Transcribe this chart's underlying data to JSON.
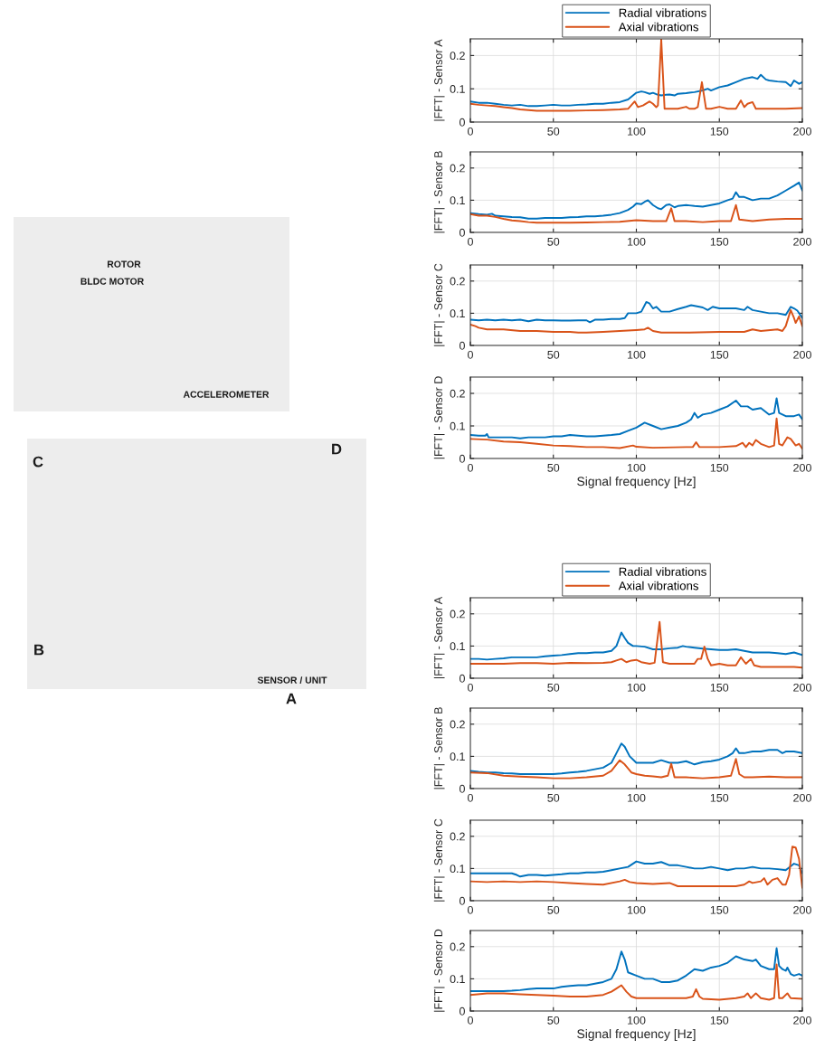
{
  "chart_data": [
    {
      "type": "other",
      "annotations": [
        "ROTOR",
        "BLDC MOTOR",
        "ACCELEROMETER",
        "C",
        "D",
        "B",
        "SENSOR / UNIT",
        "A"
      ]
    },
    {
      "type": "line",
      "ylabel": "|FFT| - Sensor A",
      "xlim": [
        0,
        200
      ],
      "ylim": [
        0,
        0.25
      ],
      "xticks": [
        0,
        50,
        100,
        150,
        200
      ],
      "yticks": [
        0,
        0.1,
        0.2
      ],
      "grid": true,
      "legend": "top",
      "line_style": "solid",
      "series": [
        {
          "name": "Radial vibrations",
          "color": "#0072bd",
          "x": [
            0,
            5,
            10,
            15,
            20,
            25,
            30,
            35,
            40,
            45,
            50,
            55,
            60,
            65,
            70,
            75,
            80,
            85,
            90,
            95,
            98,
            100,
            103,
            105,
            108,
            110,
            113,
            115,
            118,
            120,
            123,
            125,
            130,
            135,
            140,
            143,
            145,
            150,
            155,
            160,
            165,
            170,
            173,
            175,
            178,
            180,
            185,
            190,
            193,
            195,
            198,
            200
          ],
          "values": [
            0.062,
            0.058,
            0.058,
            0.055,
            0.052,
            0.05,
            0.052,
            0.048,
            0.048,
            0.05,
            0.052,
            0.05,
            0.05,
            0.052,
            0.053,
            0.055,
            0.055,
            0.058,
            0.06,
            0.068,
            0.08,
            0.088,
            0.092,
            0.09,
            0.085,
            0.088,
            0.082,
            0.08,
            0.082,
            0.083,
            0.08,
            0.085,
            0.087,
            0.09,
            0.095,
            0.1,
            0.095,
            0.105,
            0.11,
            0.12,
            0.13,
            0.135,
            0.13,
            0.142,
            0.128,
            0.125,
            0.122,
            0.12,
            0.108,
            0.125,
            0.115,
            0.12
          ]
        },
        {
          "name": "Axial vibrations",
          "color": "#d95319",
          "x": [
            0,
            5,
            10,
            15,
            20,
            25,
            30,
            35,
            40,
            50,
            60,
            70,
            80,
            90,
            95,
            99,
            101,
            104,
            108,
            110,
            112,
            113,
            115,
            117,
            120,
            125,
            130,
            132,
            135,
            137,
            139.5,
            142,
            145,
            150,
            155,
            160,
            163,
            165,
            167,
            170,
            172,
            180,
            190,
            200
          ],
          "values": [
            0.055,
            0.052,
            0.05,
            0.048,
            0.045,
            0.042,
            0.038,
            0.036,
            0.034,
            0.034,
            0.034,
            0.035,
            0.036,
            0.038,
            0.04,
            0.062,
            0.045,
            0.05,
            0.062,
            0.055,
            0.045,
            0.05,
            0.248,
            0.04,
            0.04,
            0.04,
            0.046,
            0.04,
            0.04,
            0.045,
            0.12,
            0.04,
            0.04,
            0.046,
            0.04,
            0.04,
            0.065,
            0.045,
            0.055,
            0.06,
            0.04,
            0.04,
            0.04,
            0.042
          ]
        }
      ]
    },
    {
      "type": "line",
      "ylabel": "|FFT| - Sensor B",
      "xlim": [
        0,
        200
      ],
      "ylim": [
        0,
        0.25
      ],
      "xticks": [
        0,
        50,
        100,
        150,
        200
      ],
      "yticks": [
        0,
        0.1,
        0.2
      ],
      "grid": true,
      "line_style": "solid",
      "series": [
        {
          "color": "#0072bd",
          "x": [
            0,
            5,
            10,
            13,
            15,
            20,
            25,
            30,
            35,
            40,
            45,
            50,
            55,
            60,
            65,
            70,
            75,
            80,
            85,
            90,
            95,
            98,
            100,
            103,
            105,
            107,
            110,
            113,
            115,
            118,
            120,
            123,
            125,
            130,
            135,
            140,
            145,
            150,
            155,
            158,
            160,
            162,
            165,
            170,
            175,
            180,
            185,
            190,
            195,
            198,
            200
          ],
          "values": [
            0.06,
            0.057,
            0.055,
            0.058,
            0.052,
            0.05,
            0.048,
            0.047,
            0.043,
            0.043,
            0.045,
            0.045,
            0.045,
            0.047,
            0.048,
            0.05,
            0.05,
            0.052,
            0.055,
            0.06,
            0.07,
            0.08,
            0.09,
            0.088,
            0.095,
            0.1,
            0.085,
            0.075,
            0.072,
            0.085,
            0.087,
            0.078,
            0.082,
            0.085,
            0.082,
            0.08,
            0.085,
            0.09,
            0.1,
            0.105,
            0.125,
            0.11,
            0.11,
            0.1,
            0.105,
            0.105,
            0.115,
            0.13,
            0.145,
            0.155,
            0.13
          ]
        },
        {
          "color": "#d95319",
          "x": [
            0,
            5,
            10,
            15,
            20,
            25,
            30,
            35,
            40,
            50,
            60,
            70,
            80,
            90,
            100,
            110,
            118,
            121,
            123,
            130,
            140,
            150,
            157,
            160,
            162,
            170,
            180,
            190,
            200
          ],
          "values": [
            0.057,
            0.052,
            0.052,
            0.048,
            0.042,
            0.037,
            0.035,
            0.032,
            0.03,
            0.03,
            0.03,
            0.031,
            0.032,
            0.033,
            0.038,
            0.035,
            0.035,
            0.075,
            0.035,
            0.035,
            0.032,
            0.035,
            0.035,
            0.085,
            0.04,
            0.035,
            0.04,
            0.042,
            0.042
          ]
        }
      ]
    },
    {
      "type": "line",
      "ylabel": "|FFT| - Sensor C",
      "xlim": [
        0,
        200
      ],
      "ylim": [
        0,
        0.25
      ],
      "xticks": [
        0,
        50,
        100,
        150,
        200
      ],
      "yticks": [
        0,
        0.1,
        0.2
      ],
      "grid": true,
      "line_style": "solid",
      "series": [
        {
          "color": "#0072bd",
          "x": [
            0,
            5,
            10,
            15,
            20,
            25,
            30,
            35,
            40,
            45,
            50,
            55,
            60,
            65,
            70,
            72,
            75,
            80,
            85,
            90,
            93,
            95,
            100,
            103,
            106,
            108,
            110,
            112,
            115,
            120,
            125,
            130,
            133,
            138,
            140,
            143,
            146,
            150,
            155,
            160,
            165,
            167,
            170,
            175,
            180,
            185,
            190,
            193,
            195,
            197,
            200
          ],
          "values": [
            0.08,
            0.078,
            0.08,
            0.078,
            0.08,
            0.078,
            0.08,
            0.075,
            0.08,
            0.078,
            0.078,
            0.077,
            0.077,
            0.078,
            0.078,
            0.072,
            0.08,
            0.08,
            0.082,
            0.082,
            0.085,
            0.1,
            0.1,
            0.105,
            0.135,
            0.13,
            0.115,
            0.12,
            0.105,
            0.105,
            0.113,
            0.12,
            0.125,
            0.12,
            0.118,
            0.11,
            0.12,
            0.115,
            0.115,
            0.115,
            0.11,
            0.12,
            0.11,
            0.105,
            0.1,
            0.1,
            0.095,
            0.12,
            0.115,
            0.108,
            0.085
          ]
        },
        {
          "color": "#d95319",
          "x": [
            0,
            3,
            5,
            10,
            20,
            30,
            40,
            50,
            60,
            65,
            70,
            80,
            90,
            100,
            105,
            107,
            110,
            115,
            130,
            150,
            165,
            170,
            175,
            185,
            188,
            190,
            193,
            195,
            196,
            198,
            200
          ],
          "values": [
            0.065,
            0.06,
            0.055,
            0.05,
            0.05,
            0.045,
            0.045,
            0.042,
            0.042,
            0.04,
            0.04,
            0.042,
            0.045,
            0.048,
            0.05,
            0.055,
            0.045,
            0.04,
            0.04,
            0.042,
            0.042,
            0.05,
            0.045,
            0.05,
            0.045,
            0.06,
            0.11,
            0.085,
            0.07,
            0.09,
            0.06
          ]
        }
      ]
    },
    {
      "type": "line",
      "ylabel": "|FFT| - Sensor D",
      "xlabel": "Signal frequency [Hz]",
      "xlim": [
        0,
        200
      ],
      "ylim": [
        0,
        0.25
      ],
      "xticks": [
        0,
        50,
        100,
        150,
        200
      ],
      "yticks": [
        0,
        0.1,
        0.2
      ],
      "grid": true,
      "line_style": "solid",
      "series": [
        {
          "color": "#0072bd",
          "x": [
            0,
            5,
            9,
            10,
            11,
            15,
            20,
            25,
            30,
            35,
            40,
            45,
            50,
            55,
            60,
            65,
            70,
            75,
            80,
            85,
            90,
            95,
            100,
            105,
            110,
            115,
            120,
            125,
            130,
            133,
            135,
            137,
            140,
            145,
            150,
            155,
            160,
            163,
            167,
            170,
            175,
            180,
            183,
            184.5,
            186,
            190,
            195,
            198,
            200
          ],
          "values": [
            0.072,
            0.07,
            0.07,
            0.075,
            0.065,
            0.065,
            0.065,
            0.065,
            0.062,
            0.065,
            0.065,
            0.065,
            0.068,
            0.068,
            0.072,
            0.07,
            0.068,
            0.068,
            0.07,
            0.072,
            0.075,
            0.085,
            0.095,
            0.11,
            0.1,
            0.09,
            0.095,
            0.1,
            0.11,
            0.12,
            0.14,
            0.125,
            0.135,
            0.14,
            0.15,
            0.16,
            0.178,
            0.16,
            0.16,
            0.15,
            0.155,
            0.135,
            0.14,
            0.185,
            0.14,
            0.13,
            0.13,
            0.135,
            0.12
          ]
        },
        {
          "color": "#d95319",
          "x": [
            0,
            10,
            20,
            30,
            40,
            50,
            60,
            70,
            80,
            90,
            98,
            100,
            110,
            130,
            134,
            136,
            138,
            150,
            160,
            164,
            166,
            168,
            170,
            172,
            175,
            180,
            183,
            184.5,
            186,
            188,
            191,
            193,
            196,
            198,
            200
          ],
          "values": [
            0.06,
            0.058,
            0.052,
            0.05,
            0.045,
            0.04,
            0.038,
            0.035,
            0.035,
            0.032,
            0.04,
            0.036,
            0.033,
            0.035,
            0.035,
            0.05,
            0.035,
            0.035,
            0.038,
            0.048,
            0.035,
            0.048,
            0.04,
            0.057,
            0.045,
            0.035,
            0.04,
            0.123,
            0.045,
            0.04,
            0.065,
            0.06,
            0.04,
            0.045,
            0.03
          ]
        }
      ]
    },
    {
      "type": "line",
      "ylabel": "|FFT| - Sensor A",
      "xlim": [
        0,
        200
      ],
      "ylim": [
        0,
        0.25
      ],
      "xticks": [
        0,
        50,
        100,
        150,
        200
      ],
      "yticks": [
        0,
        0.1,
        0.2
      ],
      "grid": true,
      "legend": "top",
      "line_style": "solid",
      "series": [
        {
          "name": "Radial vibrations",
          "color": "#0072bd",
          "x": [
            0,
            5,
            10,
            15,
            20,
            25,
            30,
            35,
            40,
            45,
            50,
            55,
            60,
            65,
            70,
            75,
            80,
            85,
            88,
            91,
            93,
            95,
            98,
            100,
            105,
            110,
            115,
            120,
            125,
            128,
            130,
            135,
            140,
            145,
            150,
            155,
            160,
            165,
            170,
            175,
            180,
            185,
            190,
            195,
            200
          ],
          "values": [
            0.06,
            0.06,
            0.058,
            0.06,
            0.062,
            0.065,
            0.065,
            0.065,
            0.065,
            0.068,
            0.07,
            0.072,
            0.075,
            0.078,
            0.078,
            0.08,
            0.08,
            0.085,
            0.1,
            0.142,
            0.125,
            0.11,
            0.1,
            0.1,
            0.098,
            0.09,
            0.09,
            0.093,
            0.095,
            0.1,
            0.098,
            0.095,
            0.092,
            0.09,
            0.088,
            0.088,
            0.09,
            0.085,
            0.08,
            0.08,
            0.08,
            0.078,
            0.075,
            0.08,
            0.072
          ]
        },
        {
          "name": "Axial vibrations",
          "color": "#d95319",
          "x": [
            0,
            10,
            20,
            30,
            40,
            50,
            60,
            70,
            80,
            85,
            88,
            91,
            94,
            97,
            100,
            103,
            108,
            111,
            114,
            116,
            120,
            130,
            135,
            137,
            139,
            141,
            143,
            145,
            150,
            155,
            160,
            163,
            166,
            169,
            171,
            175,
            185,
            195,
            200
          ],
          "values": [
            0.045,
            0.045,
            0.045,
            0.047,
            0.047,
            0.045,
            0.048,
            0.047,
            0.048,
            0.05,
            0.055,
            0.06,
            0.05,
            0.055,
            0.057,
            0.05,
            0.045,
            0.048,
            0.175,
            0.05,
            0.045,
            0.045,
            0.045,
            0.06,
            0.06,
            0.098,
            0.06,
            0.04,
            0.045,
            0.04,
            0.04,
            0.065,
            0.045,
            0.06,
            0.04,
            0.035,
            0.035,
            0.035,
            0.033
          ]
        }
      ]
    },
    {
      "type": "line",
      "ylabel": "|FFT| - Sensor B",
      "xlim": [
        0,
        200
      ],
      "ylim": [
        0,
        0.25
      ],
      "xticks": [
        0,
        50,
        100,
        150,
        200
      ],
      "yticks": [
        0,
        0.1,
        0.2
      ],
      "grid": true,
      "line_style": "solid",
      "series": [
        {
          "color": "#0072bd",
          "x": [
            0,
            5,
            10,
            15,
            20,
            25,
            30,
            35,
            40,
            45,
            50,
            55,
            60,
            65,
            70,
            75,
            80,
            85,
            88,
            91,
            93,
            96,
            100,
            105,
            110,
            115,
            120,
            125,
            130,
            135,
            140,
            145,
            150,
            155,
            158,
            160,
            162,
            165,
            170,
            175,
            180,
            185,
            188,
            190,
            195,
            200
          ],
          "values": [
            0.055,
            0.052,
            0.05,
            0.05,
            0.048,
            0.047,
            0.045,
            0.045,
            0.045,
            0.045,
            0.045,
            0.047,
            0.05,
            0.052,
            0.055,
            0.06,
            0.065,
            0.08,
            0.11,
            0.14,
            0.13,
            0.1,
            0.08,
            0.08,
            0.08,
            0.088,
            0.08,
            0.08,
            0.085,
            0.075,
            0.082,
            0.085,
            0.09,
            0.1,
            0.11,
            0.125,
            0.11,
            0.11,
            0.115,
            0.115,
            0.12,
            0.12,
            0.11,
            0.115,
            0.115,
            0.11
          ]
        },
        {
          "color": "#d95319",
          "x": [
            0,
            10,
            20,
            30,
            40,
            50,
            60,
            70,
            80,
            85,
            90,
            93,
            97,
            100,
            105,
            110,
            115,
            119,
            121,
            123,
            130,
            140,
            150,
            157,
            160,
            162,
            165,
            170,
            180,
            190,
            200
          ],
          "values": [
            0.05,
            0.048,
            0.04,
            0.037,
            0.035,
            0.032,
            0.032,
            0.035,
            0.04,
            0.055,
            0.088,
            0.075,
            0.05,
            0.045,
            0.04,
            0.038,
            0.035,
            0.04,
            0.077,
            0.035,
            0.035,
            0.032,
            0.035,
            0.04,
            0.092,
            0.045,
            0.035,
            0.035,
            0.037,
            0.035,
            0.035
          ]
        }
      ]
    },
    {
      "type": "line",
      "ylabel": "|FFT| - Sensor C",
      "xlim": [
        0,
        200
      ],
      "ylim": [
        0,
        0.25
      ],
      "xticks": [
        0,
        50,
        100,
        150,
        200
      ],
      "yticks": [
        0,
        0.1,
        0.2
      ],
      "grid": true,
      "line_style": "solid",
      "series": [
        {
          "color": "#0072bd",
          "x": [
            0,
            5,
            10,
            15,
            20,
            25,
            28,
            30,
            35,
            40,
            45,
            50,
            55,
            60,
            65,
            70,
            75,
            80,
            85,
            90,
            95,
            100,
            105,
            110,
            115,
            120,
            125,
            130,
            135,
            140,
            145,
            150,
            155,
            160,
            165,
            170,
            175,
            180,
            185,
            190,
            195,
            198,
            200
          ],
          "values": [
            0.085,
            0.085,
            0.085,
            0.085,
            0.085,
            0.085,
            0.08,
            0.075,
            0.08,
            0.08,
            0.078,
            0.08,
            0.082,
            0.085,
            0.085,
            0.088,
            0.088,
            0.09,
            0.095,
            0.1,
            0.105,
            0.122,
            0.115,
            0.115,
            0.12,
            0.11,
            0.11,
            0.105,
            0.1,
            0.1,
            0.105,
            0.1,
            0.095,
            0.1,
            0.1,
            0.105,
            0.1,
            0.1,
            0.098,
            0.095,
            0.115,
            0.11,
            0.085
          ]
        },
        {
          "color": "#d95319",
          "x": [
            0,
            10,
            20,
            30,
            40,
            50,
            60,
            70,
            80,
            90,
            93,
            96,
            100,
            110,
            120,
            125,
            130,
            140,
            150,
            160,
            165,
            168,
            170,
            175,
            177,
            179,
            182,
            185,
            188,
            190,
            192,
            194,
            196,
            198,
            200
          ],
          "values": [
            0.06,
            0.058,
            0.06,
            0.058,
            0.06,
            0.058,
            0.055,
            0.052,
            0.05,
            0.06,
            0.065,
            0.058,
            0.055,
            0.052,
            0.055,
            0.045,
            0.045,
            0.045,
            0.045,
            0.045,
            0.05,
            0.06,
            0.055,
            0.06,
            0.07,
            0.05,
            0.065,
            0.07,
            0.05,
            0.05,
            0.08,
            0.168,
            0.165,
            0.13,
            0.04
          ]
        }
      ]
    },
    {
      "type": "line",
      "ylabel": "|FFT| - Sensor D",
      "xlabel": "Signal frequency [Hz]",
      "xlim": [
        0,
        200
      ],
      "ylim": [
        0,
        0.25
      ],
      "xticks": [
        0,
        50,
        100,
        150,
        200
      ],
      "yticks": [
        0,
        0.1,
        0.2
      ],
      "grid": true,
      "line_style": "solid",
      "series": [
        {
          "color": "#0072bd",
          "x": [
            0,
            5,
            10,
            15,
            20,
            25,
            30,
            35,
            40,
            45,
            50,
            55,
            60,
            65,
            70,
            75,
            80,
            85,
            88,
            91,
            93,
            95,
            100,
            105,
            110,
            115,
            120,
            125,
            130,
            135,
            140,
            145,
            150,
            155,
            160,
            165,
            170,
            172,
            175,
            180,
            183,
            184.5,
            186,
            188,
            190,
            191,
            193,
            195,
            198,
            200
          ],
          "values": [
            0.062,
            0.062,
            0.062,
            0.062,
            0.062,
            0.063,
            0.065,
            0.068,
            0.07,
            0.07,
            0.07,
            0.075,
            0.078,
            0.08,
            0.08,
            0.085,
            0.09,
            0.1,
            0.13,
            0.185,
            0.16,
            0.12,
            0.11,
            0.1,
            0.1,
            0.09,
            0.09,
            0.095,
            0.11,
            0.13,
            0.125,
            0.135,
            0.14,
            0.15,
            0.17,
            0.16,
            0.155,
            0.16,
            0.14,
            0.13,
            0.13,
            0.195,
            0.14,
            0.13,
            0.125,
            0.135,
            0.115,
            0.11,
            0.115,
            0.11
          ]
        },
        {
          "color": "#d95319",
          "x": [
            0,
            10,
            20,
            30,
            40,
            50,
            60,
            70,
            80,
            85,
            88,
            91,
            94,
            97,
            100,
            110,
            120,
            130,
            134,
            136,
            138,
            140,
            150,
            160,
            165,
            167,
            169,
            172,
            175,
            180,
            183,
            184.5,
            186,
            188,
            191,
            193,
            200
          ],
          "values": [
            0.05,
            0.055,
            0.055,
            0.052,
            0.05,
            0.048,
            0.045,
            0.045,
            0.05,
            0.06,
            0.07,
            0.08,
            0.06,
            0.045,
            0.04,
            0.04,
            0.04,
            0.04,
            0.045,
            0.068,
            0.045,
            0.038,
            0.035,
            0.04,
            0.045,
            0.055,
            0.04,
            0.055,
            0.04,
            0.035,
            0.04,
            0.145,
            0.04,
            0.04,
            0.055,
            0.04,
            0.038
          ]
        }
      ]
    }
  ]
}
